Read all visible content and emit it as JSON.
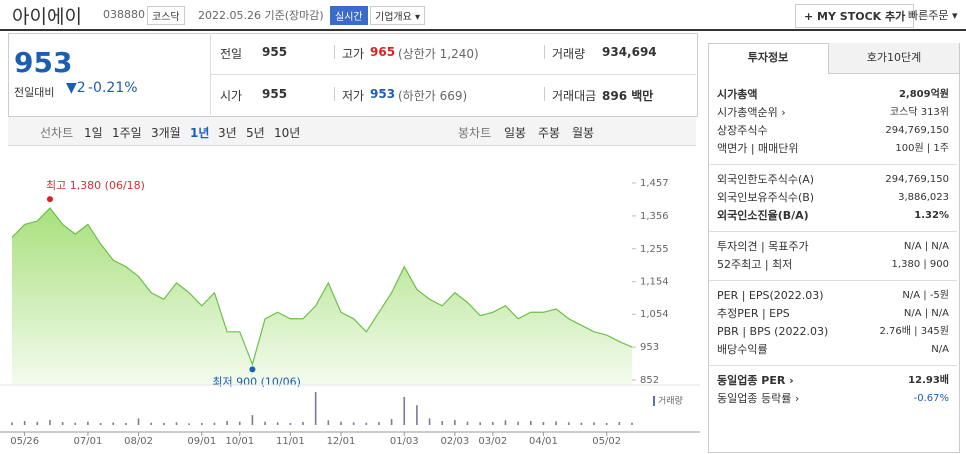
{
  "header": {
    "name": "아이에이",
    "code": "038880",
    "market": "코스닥",
    "date": "2022.05.26 기준(장마감)",
    "realtime": "실시간",
    "overview": "기업개요 ▾",
    "mystock": "+ MY STOCK 추가",
    "quick_order": "빠른주문 ▾"
  },
  "summary": {
    "price": "953",
    "change_label": "전일대비",
    "change": "▼2",
    "change_rate": "-0.21%",
    "rows": [
      [
        {
          "label": "전일",
          "value": "955"
        },
        {
          "label": "고가",
          "value": "965",
          "note": "(상한가 1,240)"
        },
        {
          "label": "거래량",
          "value": "934,694"
        }
      ],
      [
        {
          "label": "시가",
          "value": "955"
        },
        {
          "label": "저가",
          "value": "953",
          "note": "(하한가 669)"
        },
        {
          "label": "거래대금",
          "value": "896 백만"
        }
      ]
    ]
  },
  "toolbar": {
    "line_chart": "선차트",
    "periods": [
      "1일",
      "1주일",
      "3개월",
      "1년",
      "3년",
      "5년",
      "10년"
    ],
    "candle_chart": "봉차트",
    "candle_periods": [
      "일봉",
      "주봉",
      "월봉"
    ]
  },
  "chart_data": {
    "type": "area",
    "color": "#6cc04a",
    "categories": [
      null,
      "05/26",
      null,
      null,
      null,
      null,
      "07/01",
      null,
      null,
      null,
      "08/02",
      null,
      null,
      null,
      null,
      "09/01",
      null,
      null,
      "10/01",
      null,
      null,
      null,
      "11/01",
      null,
      null,
      null,
      "12/01",
      null,
      null,
      null,
      null,
      "01/03",
      null,
      null,
      null,
      "02/03",
      null,
      null,
      "03/02",
      null,
      null,
      null,
      "04/01",
      null,
      null,
      null,
      null,
      "05/02",
      null,
      null
    ],
    "values": [
      1290,
      1330,
      1340,
      1380,
      1330,
      1300,
      1330,
      1270,
      1220,
      1200,
      1170,
      1120,
      1100,
      1150,
      1120,
      1080,
      1120,
      1000,
      1000,
      900,
      1040,
      1060,
      1040,
      1040,
      1080,
      1150,
      1060,
      1040,
      1000,
      1060,
      1120,
      1200,
      1130,
      1100,
      1080,
      1120,
      1090,
      1050,
      1060,
      1080,
      1040,
      1060,
      1060,
      1070,
      1040,
      1020,
      1000,
      990,
      970,
      953
    ],
    "ylim": [
      852,
      1457
    ],
    "yticks": [
      {
        "value": 1457,
        "label": "1,457"
      },
      {
        "value": 1356,
        "label": "1,356"
      },
      {
        "value": 1255,
        "label": "1,255"
      },
      {
        "value": 1154,
        "label": "1,154"
      },
      {
        "value": 1054,
        "label": "1,054"
      },
      953,
      852
    ],
    "annotations": [
      "최고 1,380 (06/18)",
      "최저 900 (10/06)"
    ],
    "volume_label": "거래량",
    "volume": [
      8,
      12,
      10,
      15,
      9,
      7,
      10,
      6,
      8,
      6,
      20,
      7,
      6,
      8,
      5,
      6,
      7,
      12,
      10,
      30,
      10,
      8,
      6,
      9,
      100,
      14,
      10,
      8,
      7,
      9,
      18,
      85,
      60,
      20,
      12,
      15,
      10,
      8,
      9,
      14,
      10,
      12,
      9,
      11,
      8,
      7,
      8,
      6,
      9,
      7
    ]
  },
  "sidebar": {
    "tabs": [
      "투자정보",
      "호가10단계"
    ],
    "sections": [
      [
        [
          "시가총액",
          "2,809억원"
        ],
        [
          "시가총액순위 ›",
          "코스닥 313위"
        ],
        [
          "상장주식수",
          "294,769,150"
        ],
        [
          "액면가 | 매매단위",
          "100원 | 1주"
        ]
      ],
      [
        [
          "외국인한도주식수(A)",
          "294,769,150"
        ],
        [
          "외국인보유주식수(B)",
          "3,886,023"
        ],
        [
          "외국인소진율(B/A)",
          "1.32%"
        ]
      ],
      [
        [
          "투자의견 | 목표주가",
          "N/A | N/A"
        ],
        [
          "52주최고 | 최저",
          "1,380 | 900"
        ]
      ],
      [
        [
          "PER | EPS(2022.03)",
          "N/A | -5원"
        ],
        [
          "추정PER | EPS",
          "N/A | N/A"
        ],
        [
          "PBR | BPS (2022.03)",
          "2.76배 | 345원"
        ],
        [
          "배당수익률",
          "N/A"
        ]
      ],
      [
        [
          "동일업종 PER ›",
          "12.93배"
        ],
        [
          "동일업종 등락률 ›",
          "-0.67%"
        ]
      ]
    ]
  }
}
